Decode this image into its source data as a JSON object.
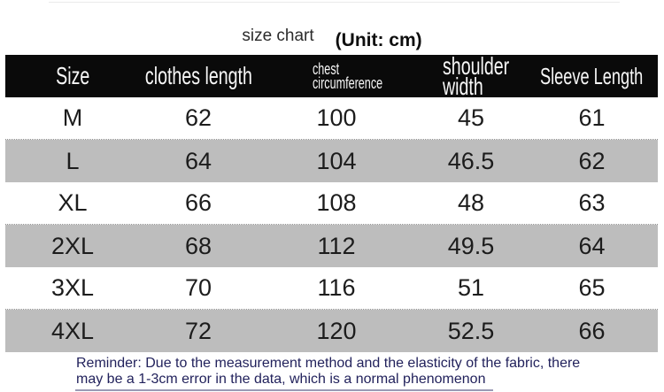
{
  "chart_data": {
    "type": "table",
    "title": "size chart",
    "unit_label": "(Unit: cm)",
    "unit": "cm",
    "columns": [
      "Size",
      "clothes length",
      "chest circumference",
      "shoulder width",
      "Sleeve Length"
    ],
    "rows": [
      [
        "M",
        62,
        100,
        45,
        61
      ],
      [
        "L",
        64,
        104,
        46.5,
        62
      ],
      [
        "XL",
        66,
        108,
        48,
        63
      ],
      [
        "2XL",
        68,
        112,
        49.5,
        64
      ],
      [
        "3XL",
        70,
        116,
        51,
        65
      ],
      [
        "4XL",
        72,
        120,
        52.5,
        66
      ]
    ],
    "note_lines": [
      "Reminder: Due to the measurement method and the elasticity of the fabric, there",
      "may be a 1-3cm error in the data, which is a normal phenomenon"
    ],
    "layout": "header row black with white text, body rows alternate white and gray stripes"
  },
  "colors": {
    "header_bg": "#0a0a0a",
    "header_text": "#f7f7f7",
    "stripe_bg": "#bdbdbd",
    "body_text": "#1c1c1c",
    "note_text": "#22225c",
    "title_text": "#2b2b2b",
    "unit_text": "#0e0e0e"
  }
}
